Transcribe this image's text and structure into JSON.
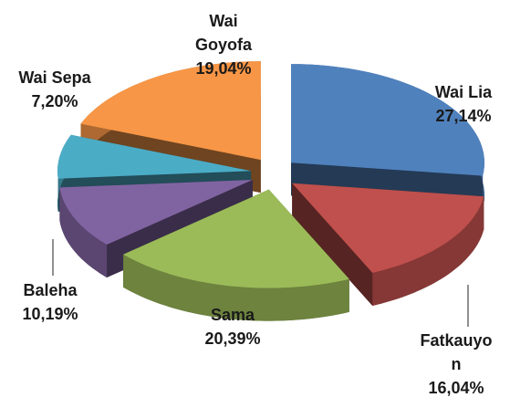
{
  "chart_data": {
    "type": "pie",
    "categories": [
      "Wai Lia",
      "Fatkauyon",
      "Sama",
      "Baleha",
      "Wai Sepa",
      "Wai Goyofa"
    ],
    "values": [
      27.14,
      16.04,
      20.39,
      10.19,
      7.2,
      19.04
    ],
    "value_labels": [
      "27,14%",
      "16,04%",
      "20,39%",
      "10,19%",
      "7,20%",
      "19,04%"
    ],
    "colors": [
      "#4f81bd",
      "#c0504d",
      "#9bbb59",
      "#8064a2",
      "#4bacc6",
      "#f79646"
    ]
  }
}
